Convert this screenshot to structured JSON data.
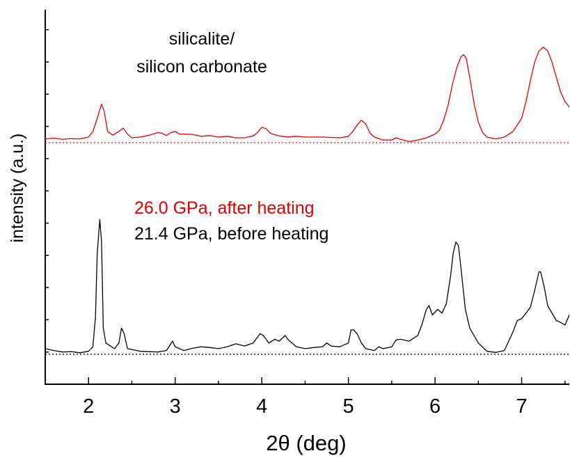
{
  "chart_data": {
    "type": "line",
    "title": "",
    "xlabel": "2θ (deg)",
    "ylabel": "intensity (a.u.)",
    "xlim": [
      1.5,
      7.55
    ],
    "ylim": [
      0,
      1
    ],
    "x_ticks": [
      2,
      3,
      4,
      5,
      6,
      7
    ],
    "x_tick_labels": [
      "2",
      "3",
      "4",
      "5",
      "6",
      "7"
    ],
    "grid": false,
    "annotations": [
      "silicalite/",
      "silicon carbonate"
    ],
    "legend_entries": [
      {
        "text": "26.0 GPa, after heating",
        "color": "#e00000"
      },
      {
        "text": "21.4 GPa, before heating",
        "color": "#000000"
      }
    ],
    "series": [
      {
        "name": "26.0 GPa, after heating",
        "color": "#e00000",
        "baseline": 0.645,
        "points": [
          [
            1.5,
            0.655
          ],
          [
            1.6,
            0.657
          ],
          [
            1.7,
            0.654
          ],
          [
            1.8,
            0.656
          ],
          [
            1.9,
            0.655
          ],
          [
            2.0,
            0.66
          ],
          [
            2.05,
            0.675
          ],
          [
            2.1,
            0.71
          ],
          [
            2.15,
            0.748
          ],
          [
            2.18,
            0.73
          ],
          [
            2.22,
            0.675
          ],
          [
            2.28,
            0.665
          ],
          [
            2.35,
            0.675
          ],
          [
            2.4,
            0.684
          ],
          [
            2.45,
            0.668
          ],
          [
            2.5,
            0.658
          ],
          [
            2.6,
            0.66
          ],
          [
            2.7,
            0.665
          ],
          [
            2.8,
            0.672
          ],
          [
            2.85,
            0.67
          ],
          [
            2.9,
            0.664
          ],
          [
            2.95,
            0.672
          ],
          [
            3.0,
            0.675
          ],
          [
            3.05,
            0.668
          ],
          [
            3.1,
            0.668
          ],
          [
            3.2,
            0.667
          ],
          [
            3.3,
            0.662
          ],
          [
            3.4,
            0.664
          ],
          [
            3.5,
            0.66
          ],
          [
            3.6,
            0.662
          ],
          [
            3.7,
            0.658
          ],
          [
            3.8,
            0.658
          ],
          [
            3.9,
            0.663
          ],
          [
            3.95,
            0.672
          ],
          [
            4.0,
            0.686
          ],
          [
            4.05,
            0.682
          ],
          [
            4.1,
            0.67
          ],
          [
            4.2,
            0.663
          ],
          [
            4.3,
            0.66
          ],
          [
            4.4,
            0.662
          ],
          [
            4.5,
            0.66
          ],
          [
            4.6,
            0.66
          ],
          [
            4.7,
            0.66
          ],
          [
            4.8,
            0.659
          ],
          [
            4.9,
            0.658
          ],
          [
            5.0,
            0.662
          ],
          [
            5.05,
            0.675
          ],
          [
            5.1,
            0.692
          ],
          [
            5.15,
            0.705
          ],
          [
            5.2,
            0.695
          ],
          [
            5.25,
            0.67
          ],
          [
            5.3,
            0.66
          ],
          [
            5.4,
            0.652
          ],
          [
            5.5,
            0.652
          ],
          [
            5.55,
            0.658
          ],
          [
            5.6,
            0.654
          ],
          [
            5.7,
            0.648
          ],
          [
            5.8,
            0.652
          ],
          [
            5.9,
            0.658
          ],
          [
            6.0,
            0.668
          ],
          [
            6.05,
            0.678
          ],
          [
            6.1,
            0.705
          ],
          [
            6.15,
            0.745
          ],
          [
            6.2,
            0.8
          ],
          [
            6.25,
            0.845
          ],
          [
            6.3,
            0.875
          ],
          [
            6.33,
            0.88
          ],
          [
            6.36,
            0.87
          ],
          [
            6.4,
            0.82
          ],
          [
            6.45,
            0.75
          ],
          [
            6.5,
            0.7
          ],
          [
            6.55,
            0.672
          ],
          [
            6.6,
            0.66
          ],
          [
            6.7,
            0.655
          ],
          [
            6.8,
            0.66
          ],
          [
            6.9,
            0.675
          ],
          [
            7.0,
            0.71
          ],
          [
            7.05,
            0.755
          ],
          [
            7.1,
            0.81
          ],
          [
            7.15,
            0.86
          ],
          [
            7.2,
            0.89
          ],
          [
            7.25,
            0.9
          ],
          [
            7.3,
            0.89
          ],
          [
            7.35,
            0.86
          ],
          [
            7.4,
            0.82
          ],
          [
            7.45,
            0.78
          ],
          [
            7.5,
            0.755
          ],
          [
            7.55,
            0.74
          ]
        ]
      },
      {
        "name": "21.4 GPa, before heating",
        "color": "#000000",
        "baseline": 0.08,
        "points": [
          [
            1.5,
            0.095
          ],
          [
            1.6,
            0.09
          ],
          [
            1.7,
            0.086
          ],
          [
            1.8,
            0.087
          ],
          [
            1.9,
            0.084
          ],
          [
            2.0,
            0.088
          ],
          [
            2.05,
            0.1
          ],
          [
            2.08,
            0.18
          ],
          [
            2.1,
            0.35
          ],
          [
            2.13,
            0.44
          ],
          [
            2.15,
            0.38
          ],
          [
            2.17,
            0.15
          ],
          [
            2.2,
            0.11
          ],
          [
            2.3,
            0.095
          ],
          [
            2.35,
            0.11
          ],
          [
            2.38,
            0.15
          ],
          [
            2.41,
            0.135
          ],
          [
            2.45,
            0.095
          ],
          [
            2.6,
            0.088
          ],
          [
            2.8,
            0.086
          ],
          [
            2.9,
            0.09
          ],
          [
            2.97,
            0.115
          ],
          [
            3.0,
            0.1
          ],
          [
            3.1,
            0.09
          ],
          [
            3.2,
            0.096
          ],
          [
            3.3,
            0.1
          ],
          [
            3.4,
            0.098
          ],
          [
            3.5,
            0.095
          ],
          [
            3.6,
            0.1
          ],
          [
            3.7,
            0.108
          ],
          [
            3.8,
            0.102
          ],
          [
            3.9,
            0.11
          ],
          [
            3.98,
            0.135
          ],
          [
            4.02,
            0.13
          ],
          [
            4.08,
            0.11
          ],
          [
            4.15,
            0.12
          ],
          [
            4.2,
            0.115
          ],
          [
            4.27,
            0.13
          ],
          [
            4.3,
            0.12
          ],
          [
            4.4,
            0.1
          ],
          [
            4.5,
            0.095
          ],
          [
            4.6,
            0.098
          ],
          [
            4.7,
            0.1
          ],
          [
            4.75,
            0.11
          ],
          [
            4.8,
            0.102
          ],
          [
            4.9,
            0.1
          ],
          [
            5.0,
            0.11
          ],
          [
            5.03,
            0.145
          ],
          [
            5.06,
            0.145
          ],
          [
            5.1,
            0.135
          ],
          [
            5.15,
            0.11
          ],
          [
            5.2,
            0.095
          ],
          [
            5.3,
            0.09
          ],
          [
            5.35,
            0.1
          ],
          [
            5.4,
            0.095
          ],
          [
            5.5,
            0.1
          ],
          [
            5.55,
            0.118
          ],
          [
            5.6,
            0.12
          ],
          [
            5.7,
            0.115
          ],
          [
            5.8,
            0.13
          ],
          [
            5.85,
            0.16
          ],
          [
            5.9,
            0.2
          ],
          [
            5.93,
            0.21
          ],
          [
            5.97,
            0.185
          ],
          [
            6.03,
            0.2
          ],
          [
            6.08,
            0.19
          ],
          [
            6.13,
            0.215
          ],
          [
            6.18,
            0.29
          ],
          [
            6.21,
            0.35
          ],
          [
            6.24,
            0.38
          ],
          [
            6.27,
            0.37
          ],
          [
            6.3,
            0.31
          ],
          [
            6.35,
            0.2
          ],
          [
            6.4,
            0.15
          ],
          [
            6.5,
            0.11
          ],
          [
            6.6,
            0.088
          ],
          [
            6.7,
            0.085
          ],
          [
            6.8,
            0.09
          ],
          [
            6.9,
            0.14
          ],
          [
            6.95,
            0.17
          ],
          [
            7.0,
            0.175
          ],
          [
            7.05,
            0.19
          ],
          [
            7.1,
            0.205
          ],
          [
            7.15,
            0.25
          ],
          [
            7.2,
            0.3
          ],
          [
            7.22,
            0.3
          ],
          [
            7.26,
            0.26
          ],
          [
            7.3,
            0.21
          ],
          [
            7.4,
            0.17
          ],
          [
            7.45,
            0.165
          ],
          [
            7.5,
            0.158
          ],
          [
            7.55,
            0.185
          ]
        ]
      }
    ]
  }
}
